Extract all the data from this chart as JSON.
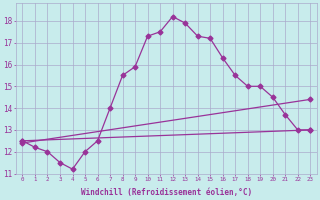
{
  "xlabel": "Windchill (Refroidissement éolien,°C)",
  "background_color": "#c8ecec",
  "grid_color": "#aaaacc",
  "line_color": "#993399",
  "xlim": [
    -0.5,
    23.5
  ],
  "ylim": [
    11.0,
    18.8
  ],
  "yticks": [
    11,
    12,
    13,
    14,
    15,
    16,
    17,
    18
  ],
  "xticks": [
    0,
    1,
    2,
    3,
    4,
    5,
    6,
    7,
    8,
    9,
    10,
    11,
    12,
    13,
    14,
    15,
    16,
    17,
    18,
    19,
    20,
    21,
    22,
    23
  ],
  "line1_x": [
    0,
    1,
    2,
    3,
    4,
    5,
    6,
    7,
    8,
    9,
    10,
    11,
    12,
    13,
    14,
    15,
    16,
    17,
    18,
    19,
    20,
    21,
    22,
    23
  ],
  "line1_y": [
    12.5,
    12.2,
    12.0,
    11.5,
    11.2,
    12.0,
    12.5,
    14.0,
    15.5,
    15.9,
    17.3,
    17.5,
    18.2,
    17.9,
    17.3,
    17.2,
    16.3,
    15.5,
    15.0,
    15.0,
    14.5,
    13.7,
    13.0,
    13.0
  ],
  "line2_x": [
    0,
    23
  ],
  "line2_y": [
    12.5,
    13.0
  ],
  "line3_x": [
    0,
    23
  ],
  "line3_y": [
    12.4,
    14.4
  ],
  "marker": "D",
  "markersize": 2.5,
  "linewidth": 0.9
}
